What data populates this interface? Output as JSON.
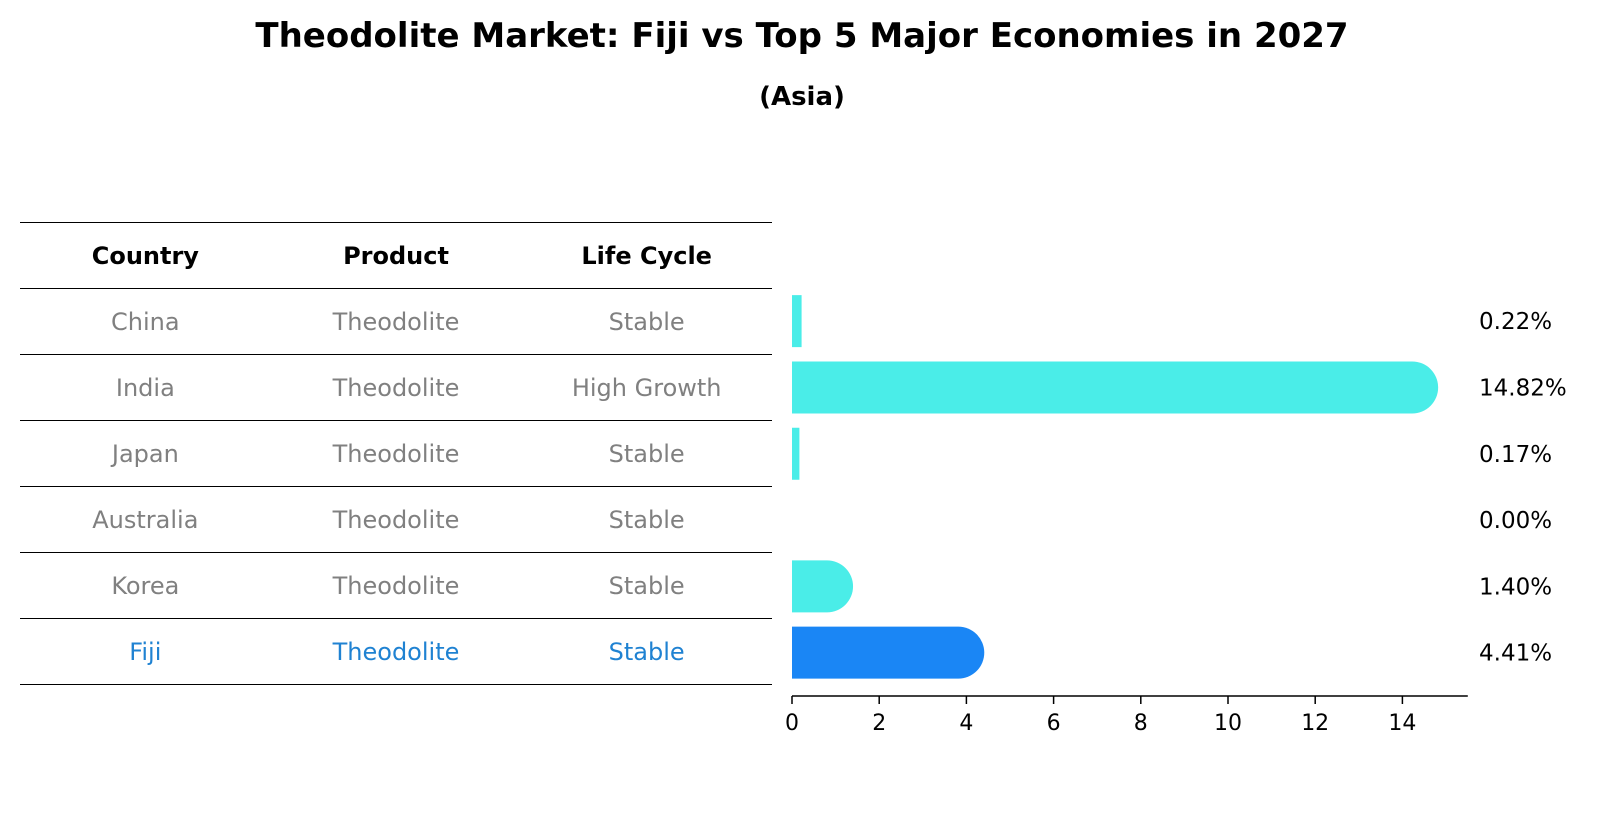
{
  "chart_data": {
    "type": "bar",
    "orientation": "horizontal",
    "title": "Theodolite Market: Fiji vs Top 5 Major Economies in 2027",
    "subtitle": "(Asia)",
    "table": {
      "headers": [
        "Country",
        "Product",
        "Life Cycle"
      ],
      "rows": [
        [
          "China",
          "Theodolite",
          "Stable"
        ],
        [
          "India",
          "Theodolite",
          "High Growth"
        ],
        [
          "Japan",
          "Theodolite",
          "Stable"
        ],
        [
          "Australia",
          "Theodolite",
          "Stable"
        ],
        [
          "Korea",
          "Theodolite",
          "Stable"
        ],
        [
          "Fiji",
          "Theodolite",
          "Stable"
        ]
      ]
    },
    "categories": [
      "China",
      "India",
      "Japan",
      "Australia",
      "Korea",
      "Fiji"
    ],
    "values": [
      0.22,
      14.82,
      0.17,
      0.0,
      1.4,
      4.41
    ],
    "value_labels": [
      "0.22%",
      "14.82%",
      "0.17%",
      "0.00%",
      "1.40%",
      "4.41%"
    ],
    "highlight": "Fiji",
    "xlim": [
      0,
      15.5
    ],
    "xticks": [
      0,
      2,
      4,
      6,
      8,
      10,
      12,
      14
    ],
    "colors": {
      "bar": "#4aede8",
      "highlight_bar": "#1a86f5",
      "highlight_text": "#1f82d2",
      "muted_text": "#808080"
    },
    "grid": false
  }
}
